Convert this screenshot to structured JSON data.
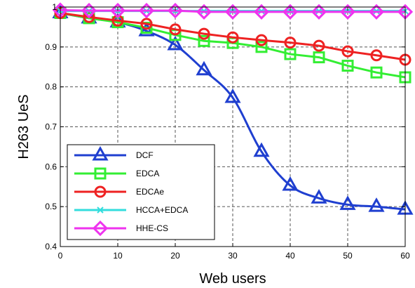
{
  "chart_data": {
    "type": "line",
    "title": "",
    "xlabel": "Web users",
    "ylabel": "H263 UeS",
    "xlim": [
      0,
      60
    ],
    "ylim": [
      0.4,
      1
    ],
    "xticks": [
      0,
      10,
      20,
      30,
      40,
      50,
      60
    ],
    "yticks": [
      0.4,
      0.5,
      0.6,
      0.7,
      0.8,
      0.9,
      1
    ],
    "ytick_labels": [
      "0.4",
      "0.5",
      "0.6",
      "0.7",
      "0.8",
      "0.9",
      "1"
    ],
    "grid": true,
    "legend_position": "bottom-left",
    "x": [
      0,
      5,
      10,
      15,
      20,
      25,
      30,
      35,
      40,
      45,
      50,
      55,
      60
    ],
    "series": [
      {
        "name": "DCF",
        "color": "#1f3fd0",
        "marker": "triangle",
        "values": [
          0.985,
          0.972,
          0.962,
          0.94,
          0.905,
          0.842,
          0.773,
          0.638,
          0.553,
          0.521,
          0.505,
          0.5,
          0.493
        ]
      },
      {
        "name": "EDCA",
        "color": "#33ee33",
        "marker": "square",
        "values": [
          0.985,
          0.972,
          0.962,
          0.948,
          0.93,
          0.915,
          0.91,
          0.9,
          0.882,
          0.874,
          0.853,
          0.836,
          0.824
        ]
      },
      {
        "name": "EDCAe",
        "color": "#ee2222",
        "marker": "circle",
        "values": [
          0.985,
          0.975,
          0.966,
          0.958,
          0.944,
          0.933,
          0.924,
          0.917,
          0.911,
          0.903,
          0.889,
          0.879,
          0.868
        ]
      },
      {
        "name": "HCCA+EDCA",
        "color": "#33dddd",
        "marker": "x",
        "values": [
          0.99,
          0.99,
          0.99,
          0.99,
          0.99,
          0.99,
          0.99,
          0.99,
          0.99,
          0.99,
          0.99,
          0.99,
          0.99
        ]
      },
      {
        "name": "HHE-CS",
        "color": "#ee33ee",
        "marker": "diamond",
        "values": [
          0.992,
          0.991,
          0.991,
          0.991,
          0.991,
          0.988,
          0.988,
          0.988,
          0.988,
          0.988,
          0.988,
          0.988,
          0.988
        ]
      }
    ]
  }
}
